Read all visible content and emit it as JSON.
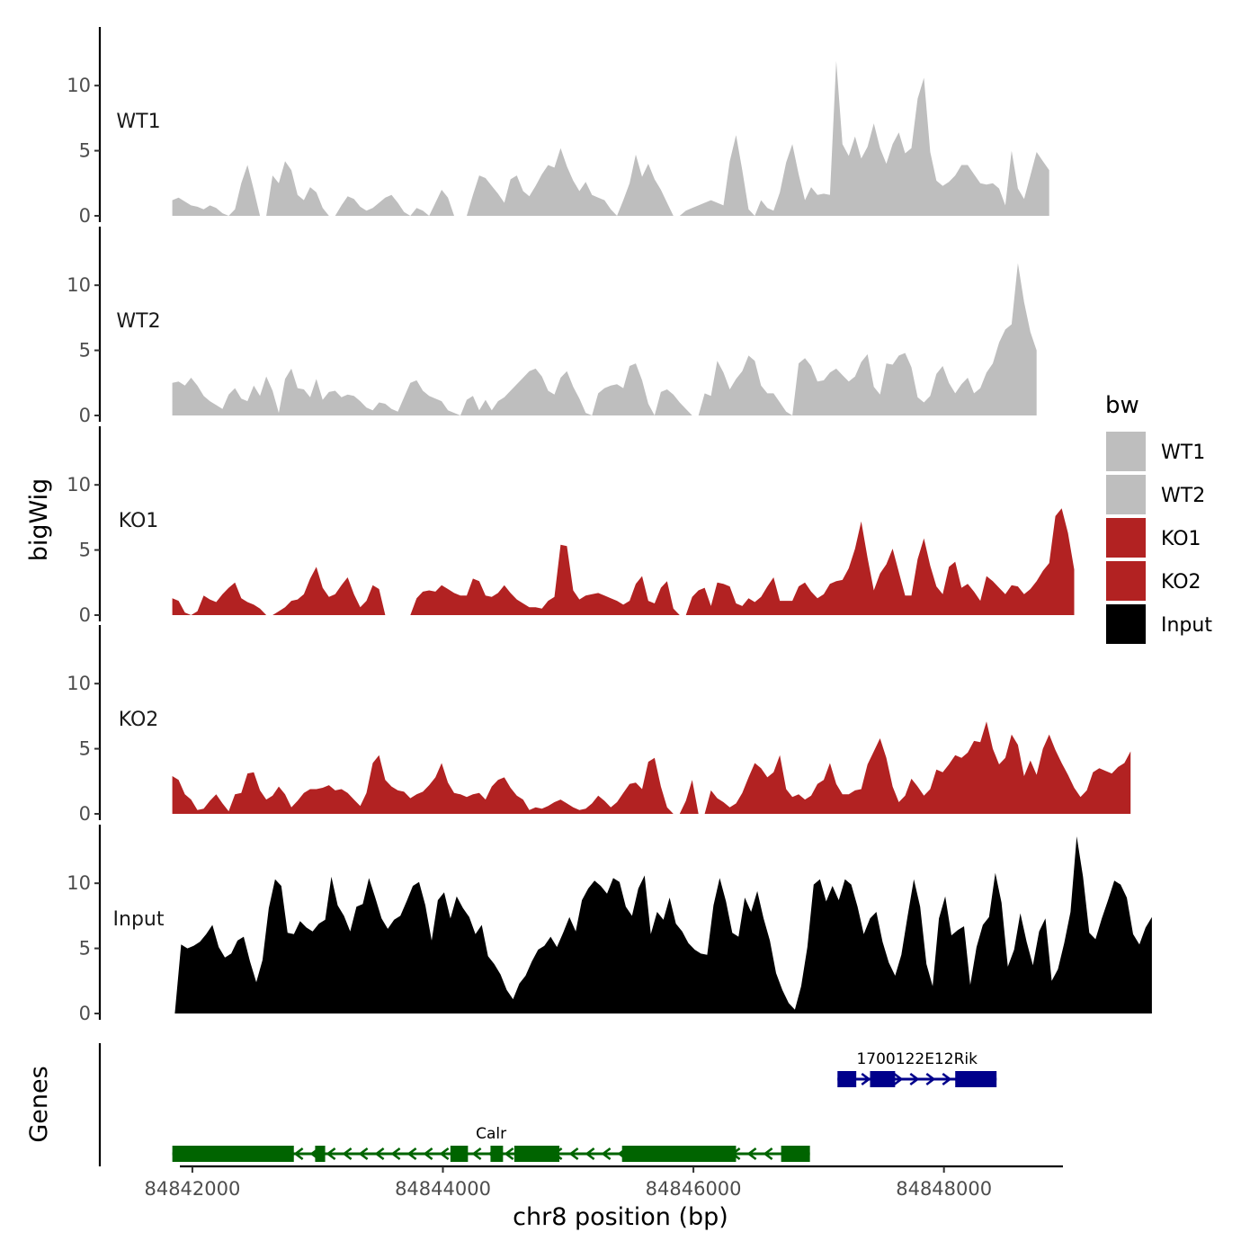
{
  "chart_data": {
    "type": "area",
    "title": "",
    "ylabel_tracks": "bigWig",
    "ylabel_genes": "Genes",
    "xlabel": "chr8 position (bp)",
    "xlim": [
      84841900,
      84848950
    ],
    "ylim": [
      0,
      14.5
    ],
    "y_ticks": [
      0,
      5,
      10
    ],
    "x_ticks": [
      84842000,
      84844000,
      84846000,
      84848000
    ],
    "legend": {
      "title": "bw",
      "placement": "right",
      "entries": [
        {
          "label": "WT1",
          "color": "#bebebe"
        },
        {
          "label": "WT2",
          "color": "#bebebe"
        },
        {
          "label": "KO1",
          "color": "#b22222"
        },
        {
          "label": "KO2",
          "color": "#b22222"
        },
        {
          "label": "Input",
          "color": "#000000"
        }
      ]
    },
    "series": [
      {
        "name": "WT1",
        "color": "#bebebe",
        "x_start": 84841840,
        "step": 50,
        "values": [
          1.2,
          1.4,
          1.1,
          0.8,
          0.7,
          0.5,
          0.8,
          0.6,
          0.2,
          0,
          0.5,
          2.5,
          3.9,
          2.0,
          0,
          0,
          3.1,
          2.5,
          4.2,
          3.5,
          1.6,
          1.2,
          2.2,
          1.8,
          0.6,
          0,
          0,
          0.8,
          1.5,
          1.3,
          0.7,
          0.4,
          0.6,
          1.0,
          1.4,
          1.6,
          1.0,
          0.3,
          0,
          0.6,
          0.4,
          0,
          1.0,
          2.0,
          1.4,
          0,
          0,
          0,
          1.6,
          3.1,
          2.9,
          2.3,
          1.7,
          1.0,
          2.8,
          3.1,
          1.9,
          1.5,
          2.3,
          3.2,
          3.9,
          3.7,
          5.2,
          3.8,
          2.7,
          1.9,
          2.6,
          1.6,
          1.4,
          1.2,
          0.5,
          0,
          1.2,
          2.5,
          4.7,
          3.0,
          4.0,
          2.8,
          2.0,
          1.0,
          0,
          0,
          0.4,
          0.6,
          0.8,
          1.0,
          1.2,
          1.0,
          0.8,
          4.2,
          6.2,
          3.5,
          0.5,
          0,
          1.2,
          0.6,
          0.4,
          1.8,
          4.1,
          5.5,
          3.2,
          1.2,
          2.2,
          1.6,
          1.7,
          1.6,
          11.9,
          5.5,
          4.6,
          6.1,
          4.4,
          5.3,
          7.1,
          5.2,
          4.0,
          5.5,
          6.4,
          4.8,
          5.2,
          9.0,
          10.6,
          4.9,
          2.7,
          2.3,
          2.6,
          3.1,
          3.9,
          3.9,
          3.2,
          2.5,
          2.4,
          2.5,
          2.1,
          0.8,
          5.0,
          2.1,
          1.3,
          3.1,
          4.9,
          4.2,
          3.5
        ]
      },
      {
        "name": "WT2",
        "color": "#bebebe",
        "x_start": 84841840,
        "step": 50,
        "values": [
          2.5,
          2.6,
          2.3,
          2.9,
          2.3,
          1.5,
          1.1,
          0.8,
          0.5,
          1.6,
          2.1,
          1.3,
          1.1,
          2.3,
          1.5,
          3.0,
          1.9,
          0.2,
          2.8,
          3.6,
          2.1,
          2.0,
          1.4,
          2.8,
          1.2,
          1.8,
          1.9,
          1.4,
          1.6,
          1.5,
          1.1,
          0.6,
          0.4,
          1.0,
          0.9,
          0.5,
          0.3,
          1.4,
          2.5,
          2.7,
          1.9,
          1.5,
          1.3,
          1.1,
          0.4,
          0.2,
          0,
          1.2,
          1.5,
          0.4,
          1.2,
          0.4,
          1.1,
          1.4,
          1.9,
          2.4,
          2.9,
          3.4,
          3.6,
          3.0,
          1.9,
          1.6,
          2.9,
          3.4,
          2.2,
          1.3,
          0.2,
          0,
          1.7,
          2.1,
          2.3,
          2.4,
          2.1,
          3.8,
          4.0,
          2.7,
          0.9,
          0,
          1.8,
          2.0,
          1.6,
          1.0,
          0.5,
          0,
          0,
          1.7,
          1.5,
          4.2,
          3.3,
          2.0,
          2.8,
          3.4,
          4.6,
          4.2,
          2.3,
          1.7,
          1.7,
          1.0,
          0.3,
          0,
          4.0,
          4.4,
          3.8,
          2.6,
          2.7,
          3.3,
          3.6,
          3.1,
          2.6,
          3.0,
          4.1,
          4.7,
          2.2,
          1.6,
          4.0,
          3.9,
          4.6,
          4.8,
          3.7,
          1.4,
          1.0,
          1.5,
          3.2,
          3.8,
          2.5,
          1.7,
          2.4,
          2.9,
          1.7,
          2.1,
          3.3,
          4.0,
          5.6,
          6.6,
          7.0,
          11.7,
          8.7,
          6.4,
          5.0
        ]
      },
      {
        "name": "KO1",
        "color": "#b22222",
        "x_start": 84841840,
        "step": 50,
        "values": [
          1.3,
          1.1,
          0.2,
          0,
          0.3,
          1.5,
          1.2,
          1.0,
          1.6,
          2.1,
          2.5,
          1.3,
          1.0,
          0.8,
          0.5,
          0,
          0,
          0.3,
          0.6,
          1.1,
          1.2,
          1.6,
          2.8,
          3.7,
          2.1,
          1.4,
          1.6,
          2.3,
          2.9,
          1.6,
          0.6,
          1.1,
          2.3,
          2.0,
          0,
          0,
          0,
          0,
          0,
          1.3,
          1.8,
          1.9,
          1.8,
          2.3,
          2.0,
          1.7,
          1.5,
          1.5,
          2.8,
          2.6,
          1.5,
          1.4,
          1.7,
          2.3,
          1.7,
          1.2,
          0.9,
          0.6,
          0.6,
          0.5,
          1.1,
          1.4,
          5.4,
          5.3,
          1.9,
          1.2,
          1.5,
          1.6,
          1.7,
          1.5,
          1.3,
          1.1,
          0.8,
          1.1,
          2.4,
          3.0,
          1.1,
          0.9,
          2.1,
          2.6,
          0.5,
          0,
          0,
          1.4,
          1.9,
          2.1,
          0.7,
          2.5,
          2.4,
          2.2,
          0.9,
          0.7,
          1.3,
          1.0,
          1.4,
          2.2,
          2.9,
          1.1,
          1.1,
          1.1,
          2.2,
          2.5,
          1.8,
          1.3,
          1.6,
          2.4,
          2.6,
          2.7,
          3.6,
          5.1,
          7.2,
          4.4,
          1.9,
          3.2,
          3.9,
          5.1,
          3.3,
          1.5,
          1.5,
          4.3,
          5.9,
          3.8,
          2.2,
          1.6,
          3.7,
          4.1,
          2.1,
          2.4,
          1.8,
          1.1,
          3.0,
          2.6,
          2.1,
          1.6,
          2.3,
          2.2,
          1.6,
          2.0,
          2.6,
          3.4,
          4.0,
          7.6,
          8.2,
          6.3,
          3.5
        ]
      },
      {
        "name": "KO2",
        "color": "#b22222",
        "x_start": 84841840,
        "step": 50,
        "values": [
          2.9,
          2.6,
          1.5,
          1.1,
          0.3,
          0.4,
          1.0,
          1.5,
          0.8,
          0.2,
          1.5,
          1.6,
          3.1,
          3.2,
          1.8,
          1.1,
          1.4,
          2.1,
          1.5,
          0.5,
          1.0,
          1.6,
          1.9,
          1.9,
          2.0,
          2.2,
          1.8,
          1.9,
          1.6,
          1.1,
          0.6,
          1.6,
          3.9,
          4.5,
          2.6,
          2.1,
          1.8,
          1.7,
          1.2,
          1.5,
          1.7,
          2.2,
          2.8,
          3.9,
          2.4,
          1.6,
          1.5,
          1.3,
          1.5,
          1.6,
          1.1,
          2.1,
          2.6,
          2.8,
          2.0,
          1.4,
          1.1,
          0.3,
          0.5,
          0.4,
          0.6,
          0.9,
          1.1,
          0.8,
          0.5,
          0.3,
          0.4,
          0.8,
          1.4,
          1.0,
          0.5,
          0.9,
          1.6,
          2.3,
          2.4,
          1.9,
          4.0,
          4.3,
          2.1,
          0.5,
          0,
          0,
          1.0,
          2.6,
          0,
          0,
          1.8,
          1.2,
          0.9,
          0.5,
          0.8,
          1.6,
          2.8,
          3.9,
          3.5,
          2.8,
          3.2,
          4.5,
          1.9,
          1.3,
          1.5,
          1.1,
          1.4,
          2.3,
          2.6,
          3.9,
          2.3,
          1.5,
          1.5,
          1.8,
          1.9,
          3.8,
          4.8,
          5.8,
          4.3,
          2.1,
          0.9,
          1.4,
          2.7,
          2.1,
          1.4,
          1.9,
          3.4,
          3.2,
          3.8,
          4.5,
          4.3,
          4.7,
          5.6,
          5.5,
          7.1,
          5.0,
          3.8,
          4.3,
          6.1,
          5.3,
          2.9,
          4.1,
          3.0,
          5.0,
          6.1,
          4.9,
          3.9,
          3.0,
          2.0,
          1.3,
          1.8,
          3.2,
          3.5,
          3.3,
          3.1,
          3.6,
          3.9,
          4.8
        ]
      },
      {
        "name": "Input",
        "color": "#000000",
        "x_start": 84841860,
        "step": 50,
        "values": [
          0,
          5.3,
          5.0,
          5.2,
          5.5,
          6.1,
          6.8,
          5.1,
          4.3,
          4.6,
          5.6,
          5.9,
          4.0,
          2.4,
          4.1,
          8.1,
          10.3,
          9.8,
          6.2,
          6.1,
          7.1,
          6.6,
          6.3,
          6.9,
          7.2,
          10.5,
          8.3,
          7.5,
          6.3,
          8.2,
          8.4,
          10.4,
          8.9,
          7.3,
          6.5,
          7.2,
          7.5,
          8.6,
          9.8,
          10.1,
          8.3,
          5.6,
          8.7,
          9.3,
          7.3,
          9.0,
          8.1,
          7.4,
          6.1,
          6.8,
          4.4,
          3.8,
          3.0,
          1.8,
          1.1,
          2.3,
          2.9,
          4.0,
          4.9,
          5.2,
          5.9,
          5.1,
          6.2,
          7.4,
          6.3,
          8.7,
          9.6,
          10.2,
          9.8,
          9.2,
          10.4,
          10.1,
          8.2,
          7.5,
          9.6,
          10.6,
          6.1,
          7.8,
          7.2,
          8.9,
          6.9,
          6.3,
          5.4,
          4.9,
          4.6,
          4.5,
          8.3,
          10.4,
          8.6,
          6.2,
          5.9,
          8.9,
          7.8,
          9.4,
          7.3,
          5.6,
          3.1,
          1.8,
          0.8,
          0.3,
          2.1,
          5.1,
          9.9,
          10.3,
          8.6,
          9.8,
          8.7,
          10.3,
          9.9,
          8.2,
          6.1,
          7.3,
          7.8,
          5.5,
          3.9,
          2.9,
          4.5,
          7.5,
          10.3,
          8.2,
          3.8,
          2.1,
          7.3,
          9.0,
          6.0,
          6.4,
          6.7,
          2.2,
          5.1,
          6.8,
          7.4,
          10.8,
          8.5,
          3.6,
          4.9,
          7.7,
          5.5,
          3.7,
          6.3,
          7.3,
          2.5,
          3.4,
          5.4,
          7.8,
          13.6,
          10.5,
          6.2,
          5.7,
          7.3,
          8.7,
          10.2,
          9.9,
          8.9,
          6.1,
          5.3,
          6.6,
          7.4
        ]
      }
    ],
    "genes": [
      {
        "name": "Calr",
        "strand": "-",
        "color": "#006400",
        "start": 84841840,
        "end": 84846930,
        "exons": [
          [
            84841840,
            84842810
          ],
          [
            84842980,
            84843060
          ],
          [
            84844060,
            84844200
          ],
          [
            84844380,
            84844480
          ],
          [
            84844570,
            84844930
          ],
          [
            84845430,
            84846340
          ],
          [
            84846700,
            84846930
          ]
        ]
      },
      {
        "name": "1700122E12Rik",
        "strand": "+",
        "color": "#00008b",
        "start": 84847150,
        "end": 84848420,
        "exons": [
          [
            84847150,
            84847300
          ],
          [
            84847410,
            84847610
          ],
          [
            84848090,
            84848420
          ]
        ]
      }
    ]
  }
}
